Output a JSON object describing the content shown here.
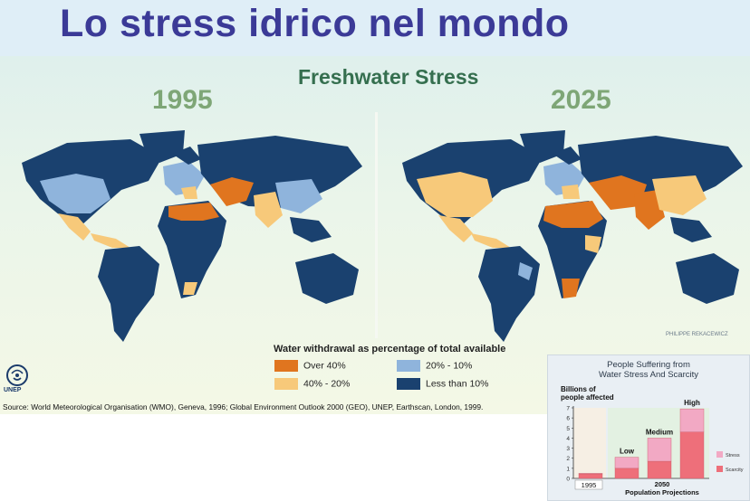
{
  "slide": {
    "title": "Lo stress idrico nel mondo"
  },
  "poster": {
    "title": "Freshwater Stress",
    "years": [
      "1995",
      "2025"
    ],
    "credit": "PHILIPPE REKACEWICZ"
  },
  "legend": {
    "title": "Water withdrawal as percentage of total available",
    "items": [
      {
        "label": "Over 40%",
        "color": "#e0751f"
      },
      {
        "label": "40% - 20%",
        "color": "#f7c97a"
      },
      {
        "label": "20% - 10%",
        "color": "#8fb4dc"
      },
      {
        "label": "Less than 10%",
        "color": "#1a416f"
      }
    ]
  },
  "logo": {
    "text": "UNEP"
  },
  "source": "Source: World Meteorological Organisation (WMO), Geneva, 1996; Global Environment Outlook 2000 (GEO), UNEP, Earthscan, London, 1999.",
  "chart_data": {
    "type": "bar",
    "title": "People Suffering from Water Stress And Scarcity",
    "ylabel": "Billions of people affected",
    "ylim": [
      0,
      7
    ],
    "yticks": [
      0,
      1,
      2,
      3,
      4,
      5,
      6,
      7
    ],
    "categories": [
      "1995",
      "Low",
      "Medium",
      "High"
    ],
    "category_labels": [
      "",
      "Low",
      "Medium",
      "High"
    ],
    "xlabels": [
      "1995",
      "2050",
      "Population Projections"
    ],
    "series": [
      {
        "name": "Scarcity",
        "color": "#ee6f7a",
        "values": [
          0.45,
          1.0,
          1.7,
          4.6
        ]
      },
      {
        "name": "Stress",
        "color": "#f2a9c4",
        "values": [
          0.05,
          1.1,
          2.3,
          2.3
        ]
      }
    ]
  }
}
